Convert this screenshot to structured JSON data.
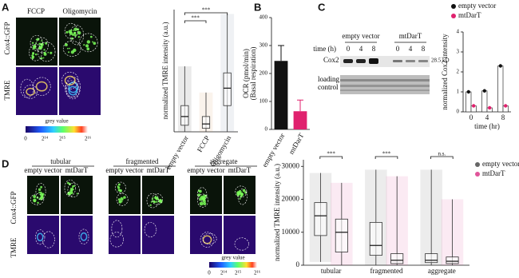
{
  "figure": {
    "panel_labels": [
      "A",
      "B",
      "C",
      "D"
    ],
    "a_images": {
      "cols": [
        "FCCP",
        "Oligomycin"
      ],
      "rows": [
        "Cox4::GFP",
        "TMRE"
      ],
      "colorbar_title": "grey value",
      "colorbar_ticks": [
        "0",
        "2¹⁴",
        "2¹⁵",
        "2¹⁶"
      ]
    },
    "blot": {
      "groups": [
        "empty vector",
        "mtDarT"
      ],
      "time_label": "time (h)",
      "times": [
        "0",
        "4",
        "8"
      ],
      "rows": [
        "Cox2",
        "loading control"
      ],
      "size": "28.5 kD"
    },
    "d_images": {
      "conditions": [
        "tubular",
        "fragmented",
        "aggregate"
      ],
      "strains": [
        "empty vector",
        "mtDarT"
      ],
      "rows": [
        "Cox4::GFP",
        "TMRE"
      ],
      "colorbar_title": "grey value",
      "colorbar_ticks": [
        "0",
        "2¹⁴",
        "2¹⁵",
        "2¹⁶"
      ]
    }
  },
  "chart_data": [
    {
      "type": "box",
      "ylabel": "normalized TMRE intensity (a.u.)",
      "categories": [
        "empty vector",
        "FCCP",
        "Oligomycin"
      ],
      "colors": [
        "#555555",
        "#d9a066",
        "#7f8fa6"
      ],
      "low": [
        0,
        0,
        0
      ],
      "q1": [
        1500,
        800,
        6000
      ],
      "median": [
        3500,
        1800,
        10000
      ],
      "q3": [
        6000,
        3500,
        13500
      ],
      "high": [
        15000,
        9000,
        27000
      ],
      "ylim": [
        0,
        28000
      ],
      "annotations": [
        "***",
        "***"
      ]
    },
    {
      "type": "bar",
      "ylabel": "OCR (pmol/min)",
      "ylabel2": "(Basal respiration)",
      "categories": [
        "empty vector",
        "mtDarT"
      ],
      "values": [
        245,
        65
      ],
      "errors": [
        55,
        40
      ],
      "colors": [
        "#111111",
        "#e0226e"
      ],
      "ylim": [
        0,
        400
      ],
      "yticks": [
        0,
        100,
        200,
        300,
        400
      ]
    },
    {
      "type": "grouped-bar",
      "ylabel": "normalized Cox2 intensity",
      "xlabel": "time (hr)",
      "categories": [
        "0",
        "4",
        "8"
      ],
      "series": [
        {
          "name": "empty vector",
          "color": "#111111",
          "values": [
            1.0,
            1.05,
            2.3
          ]
        },
        {
          "name": "mtDarT",
          "color": "#e0226e",
          "values": [
            0.3,
            0.2,
            0.3
          ]
        }
      ],
      "ylim": [
        0,
        4
      ],
      "yticks": [
        0,
        1,
        2,
        3,
        4
      ],
      "legend": "top-right"
    },
    {
      "type": "box",
      "ylabel": "normalized TMRE intensity (a.u.)",
      "categories": [
        "tubular",
        "fragmented",
        "aggregate"
      ],
      "series": [
        {
          "name": "empty vector",
          "color": "#666666",
          "low": [
            1000,
            0,
            0
          ],
          "q1": [
            9000,
            3000,
            800
          ],
          "median": [
            15000,
            6000,
            1500
          ],
          "q3": [
            19000,
            13000,
            3500
          ],
          "high": [
            28000,
            29000,
            29000
          ]
        },
        {
          "name": "mtDarT",
          "color": "#e0559a",
          "low": [
            0,
            0,
            0
          ],
          "q1": [
            4000,
            500,
            500
          ],
          "median": [
            10000,
            1500,
            1200
          ],
          "q3": [
            14000,
            3500,
            2500
          ],
          "high": [
            25000,
            27000,
            20000
          ]
        }
      ],
      "ylim": [
        0,
        32000
      ],
      "yticks": [
        0,
        10000,
        20000,
        30000
      ],
      "annotations": [
        "***",
        "***",
        "n.s."
      ],
      "legend": "top-right"
    }
  ]
}
